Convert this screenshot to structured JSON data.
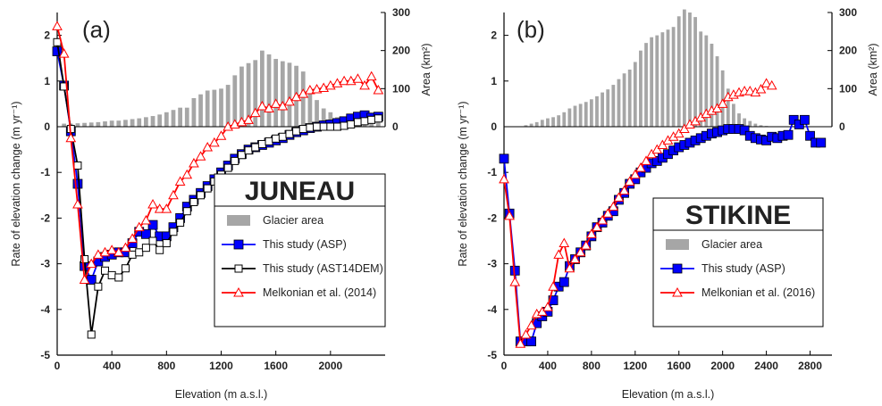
{
  "chart_data": [
    {
      "type": "line",
      "panel_label": "(a)",
      "title": "JUNEAU",
      "xlabel": "Elevation (m a.s.l.)",
      "ylabel": "Rate of elevation change (m yr⁻¹)",
      "y2label": "Area (km²)",
      "xlim": [
        0,
        2400
      ],
      "ylim": [
        -5,
        2.5
      ],
      "y2lim": [
        0,
        300
      ],
      "xticks": [
        "0",
        "400",
        "800",
        "1200",
        "1600",
        "2000"
      ],
      "yticks": [
        "-5",
        "-4",
        "-3",
        "-2",
        "-1",
        "0",
        "1",
        "2"
      ],
      "y2ticks": [
        "0",
        "100",
        "200",
        "300"
      ],
      "legend_position": "bottom-right",
      "bars": {
        "name": "Glacier area",
        "color": "#a6a6a6",
        "x": [
          50,
          100,
          150,
          200,
          250,
          300,
          350,
          400,
          450,
          500,
          550,
          600,
          650,
          700,
          750,
          800,
          850,
          900,
          950,
          1000,
          1050,
          1100,
          1150,
          1200,
          1250,
          1300,
          1350,
          1400,
          1450,
          1500,
          1550,
          1600,
          1650,
          1700,
          1750,
          1800,
          1850,
          1900,
          1950,
          2000,
          2050,
          2100,
          2150,
          2200,
          2250,
          2300,
          2350
        ],
        "values": [
          8,
          8,
          9,
          10,
          11,
          12,
          14,
          16,
          16,
          18,
          20,
          22,
          25,
          28,
          32,
          38,
          44,
          50,
          50,
          75,
          85,
          95,
          97,
          100,
          110,
          135,
          158,
          167,
          175,
          200,
          190,
          178,
          172,
          168,
          160,
          145,
          100,
          70,
          48,
          38,
          25,
          25,
          20,
          18,
          16,
          14,
          12
        ]
      },
      "series": [
        {
          "name": "This study (ASP)",
          "color": "#0000ff",
          "marker": "square-filled",
          "x": [
            0,
            50,
            100,
            150,
            200,
            250,
            300,
            350,
            400,
            450,
            500,
            550,
            600,
            650,
            700,
            750,
            800,
            850,
            900,
            950,
            1000,
            1050,
            1100,
            1150,
            1200,
            1250,
            1300,
            1350,
            1400,
            1450,
            1500,
            1550,
            1600,
            1650,
            1700,
            1750,
            1800,
            1850,
            1900,
            1950,
            2000,
            2050,
            2100,
            2150,
            2200,
            2250,
            2300,
            2350
          ],
          "y": [
            1.65,
            0.9,
            -0.1,
            -1.25,
            -3.05,
            -3.35,
            -2.95,
            -2.85,
            -2.8,
            -2.75,
            -2.75,
            -2.55,
            -2.3,
            -2.35,
            -2.15,
            -2.4,
            -2.4,
            -2.2,
            -2.0,
            -1.75,
            -1.6,
            -1.45,
            -1.3,
            -1.15,
            -1.0,
            -0.85,
            -0.7,
            -0.6,
            -0.5,
            -0.45,
            -0.4,
            -0.35,
            -0.3,
            -0.25,
            -0.18,
            -0.12,
            -0.08,
            -0.03,
            0.0,
            0.03,
            0.05,
            0.08,
            0.12,
            0.18,
            0.22,
            0.25,
            0.2,
            0.22
          ]
        },
        {
          "name": "This study (AST14DEM)",
          "color": "#000000",
          "marker": "square-open",
          "x": [
            0,
            50,
            100,
            150,
            200,
            250,
            300,
            350,
            400,
            450,
            500,
            550,
            600,
            650,
            700,
            750,
            800,
            850,
            900,
            950,
            1000,
            1050,
            1100,
            1150,
            1200,
            1250,
            1300,
            1350,
            1400,
            1450,
            1500,
            1550,
            1600,
            1650,
            1700,
            1750,
            1800,
            1850,
            1900,
            1950,
            2000,
            2050,
            2100,
            2150,
            2200,
            2250,
            2300,
            2350
          ],
          "y": [
            1.85,
            0.88,
            -0.05,
            -0.85,
            -2.9,
            -4.55,
            -3.5,
            -3.15,
            -3.25,
            -3.3,
            -3.1,
            -2.8,
            -2.75,
            -2.65,
            -2.5,
            -2.7,
            -2.55,
            -2.3,
            -2.1,
            -1.85,
            -1.65,
            -1.5,
            -1.35,
            -1.2,
            -1.05,
            -0.9,
            -0.75,
            -0.62,
            -0.52,
            -0.45,
            -0.38,
            -0.32,
            -0.26,
            -0.22,
            -0.16,
            -0.1,
            -0.05,
            -0.02,
            0.0,
            0.0,
            0.0,
            0.0,
            0.02,
            0.05,
            0.1,
            0.12,
            0.15,
            0.18
          ]
        },
        {
          "name": "Melkonian et al. (2014)",
          "color": "#ff0000",
          "marker": "triangle-open",
          "x": [
            0,
            50,
            100,
            150,
            200,
            250,
            300,
            350,
            400,
            450,
            500,
            550,
            600,
            650,
            700,
            750,
            800,
            850,
            900,
            950,
            1000,
            1050,
            1100,
            1150,
            1200,
            1250,
            1300,
            1350,
            1400,
            1450,
            1500,
            1550,
            1600,
            1650,
            1700,
            1750,
            1800,
            1850,
            1900,
            1950,
            2000,
            2050,
            2100,
            2150,
            2200,
            2250,
            2300,
            2350
          ],
          "y": [
            2.2,
            1.6,
            -0.25,
            -1.7,
            -3.35,
            -3.0,
            -2.8,
            -2.75,
            -2.7,
            -2.75,
            -2.65,
            -2.45,
            -2.2,
            -2.05,
            -1.7,
            -1.8,
            -1.8,
            -1.5,
            -1.2,
            -1.05,
            -0.8,
            -0.65,
            -0.45,
            -0.35,
            -0.2,
            0.0,
            0.05,
            0.1,
            0.15,
            0.3,
            0.45,
            0.4,
            0.5,
            0.45,
            0.55,
            0.65,
            0.72,
            0.8,
            0.82,
            0.85,
            0.9,
            0.95,
            1.0,
            1.0,
            1.05,
            0.9,
            1.1,
            0.8
          ]
        }
      ]
    },
    {
      "type": "line",
      "panel_label": "(b)",
      "title": "STIKINE",
      "xlabel": "Elevation (m a.s.l.)",
      "ylabel": "Rate of elevation change (m yr⁻¹)",
      "y2label": "Area (km²)",
      "xlim": [
        0,
        3000
      ],
      "ylim": [
        -5,
        2.5
      ],
      "y2lim": [
        0,
        300
      ],
      "xticks": [
        "0",
        "400",
        "800",
        "1200",
        "1600",
        "2000",
        "2400",
        "2800"
      ],
      "yticks": [
        "-5",
        "-4",
        "-3",
        "-2",
        "-1",
        "0",
        "1",
        "2"
      ],
      "y2ticks": [
        "0",
        "100",
        "200",
        "300"
      ],
      "legend_position": "bottom-right",
      "bars": {
        "name": "Glacier area",
        "color": "#a6a6a6",
        "x": [
          200,
          250,
          300,
          350,
          400,
          450,
          500,
          550,
          600,
          650,
          700,
          750,
          800,
          850,
          900,
          950,
          1000,
          1050,
          1100,
          1150,
          1200,
          1250,
          1300,
          1350,
          1400,
          1450,
          1500,
          1550,
          1600,
          1650,
          1700,
          1750,
          1800,
          1850,
          1900,
          1950,
          2000,
          2050,
          2100,
          2150,
          2200,
          2250,
          2300,
          2350,
          2400
        ],
        "values": [
          4,
          8,
          12,
          18,
          22,
          25,
          30,
          38,
          48,
          55,
          60,
          65,
          72,
          80,
          90,
          98,
          110,
          125,
          140,
          150,
          170,
          200,
          220,
          235,
          240,
          248,
          255,
          262,
          290,
          308,
          300,
          288,
          250,
          240,
          218,
          185,
          148,
          100,
          60,
          35,
          22,
          15,
          8,
          4,
          2
        ]
      },
      "series": [
        {
          "name": "This study (ASP)",
          "color": "#0000ff",
          "marker": "square-filled",
          "x": [
            0,
            50,
            100,
            150,
            200,
            250,
            300,
            350,
            400,
            450,
            500,
            550,
            600,
            650,
            700,
            750,
            800,
            850,
            900,
            950,
            1000,
            1050,
            1100,
            1150,
            1200,
            1250,
            1300,
            1350,
            1400,
            1450,
            1500,
            1550,
            1600,
            1650,
            1700,
            1750,
            1800,
            1850,
            1900,
            1950,
            2000,
            2050,
            2100,
            2150,
            2200,
            2250,
            2300,
            2350,
            2400,
            2450,
            2500,
            2550,
            2600,
            2650,
            2700,
            2750,
            2800,
            2850,
            2900
          ],
          "y": [
            -0.7,
            -1.9,
            -3.15,
            -4.7,
            -4.7,
            -4.7,
            -4.3,
            -4.15,
            -4.05,
            -3.8,
            -3.5,
            -3.4,
            -3.05,
            -2.9,
            -2.75,
            -2.6,
            -2.4,
            -2.2,
            -2.1,
            -1.95,
            -1.85,
            -1.6,
            -1.45,
            -1.25,
            -1.15,
            -1.0,
            -0.9,
            -0.8,
            -0.75,
            -0.68,
            -0.6,
            -0.52,
            -0.45,
            -0.4,
            -0.35,
            -0.3,
            -0.25,
            -0.2,
            -0.15,
            -0.12,
            -0.08,
            -0.05,
            -0.05,
            -0.05,
            -0.08,
            -0.2,
            -0.25,
            -0.28,
            -0.3,
            -0.22,
            -0.25,
            -0.2,
            -0.18,
            0.15,
            0.05,
            0.15,
            -0.2,
            -0.35,
            -0.35
          ]
        },
        {
          "name": "Melkonian et al. (2016)",
          "color": "#ff0000",
          "marker": "triangle-open",
          "x": [
            0,
            50,
            100,
            150,
            200,
            250,
            300,
            350,
            400,
            450,
            500,
            550,
            600,
            650,
            700,
            750,
            800,
            850,
            900,
            950,
            1000,
            1050,
            1100,
            1150,
            1200,
            1250,
            1300,
            1350,
            1400,
            1450,
            1500,
            1550,
            1600,
            1650,
            1700,
            1750,
            1800,
            1850,
            1900,
            1950,
            2000,
            2050,
            2100,
            2150,
            2200,
            2250,
            2300,
            2350,
            2400,
            2450
          ],
          "y": [
            -1.15,
            -1.95,
            -3.4,
            -4.75,
            -4.55,
            -4.35,
            -4.1,
            -4.05,
            -3.95,
            -3.5,
            -2.8,
            -2.55,
            -3.1,
            -2.9,
            -2.75,
            -2.6,
            -2.35,
            -2.2,
            -2.05,
            -1.9,
            -1.75,
            -1.55,
            -1.4,
            -1.2,
            -1.05,
            -0.9,
            -0.75,
            -0.6,
            -0.5,
            -0.4,
            -0.3,
            -0.22,
            -0.15,
            -0.05,
            0.05,
            0.12,
            0.2,
            0.28,
            0.35,
            0.4,
            0.5,
            0.65,
            0.7,
            0.75,
            0.78,
            0.78,
            0.75,
            0.82,
            0.95,
            0.9
          ]
        }
      ]
    }
  ]
}
